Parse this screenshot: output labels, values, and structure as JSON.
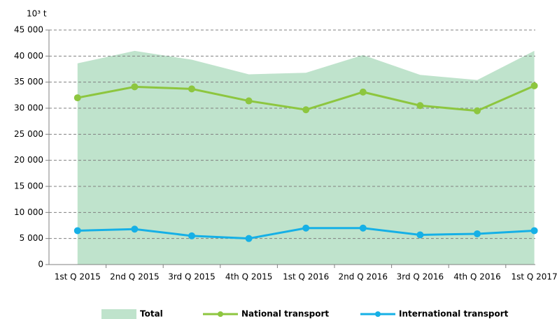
{
  "chart_data": {
    "type": "line",
    "y_unit": "10³ t",
    "categories": [
      "1st Q 2015",
      "2nd Q 2015",
      "3rd Q 2015",
      "4th Q 2015",
      "1st Q 2016",
      "2nd Q 2016",
      "3rd Q 2016",
      "4th Q 2016",
      "1st Q 2017"
    ],
    "series": [
      {
        "name": "Total",
        "kind": "area",
        "color": "#bfe3cc",
        "values": [
          38600,
          41000,
          39300,
          36500,
          36800,
          40200,
          36400,
          35400,
          41000
        ]
      },
      {
        "name": "National transport",
        "kind": "line",
        "color": "#8dc63f",
        "values": [
          32000,
          34100,
          33700,
          31400,
          29700,
          33100,
          30500,
          29500,
          34300
        ]
      },
      {
        "name": "International transport",
        "kind": "line",
        "color": "#16b0e6",
        "values": [
          6500,
          6800,
          5500,
          5000,
          7000,
          7000,
          5700,
          5900,
          6500
        ]
      }
    ],
    "ylim": [
      0,
      45000
    ],
    "yticks": [
      0,
      {
        "value": 5000,
        "label": "5 000"
      },
      {
        "value": 10000,
        "label": "10 000"
      },
      {
        "value": 15000,
        "label": "15 000"
      },
      {
        "value": 20000,
        "label": "20 000"
      },
      {
        "value": 25000,
        "label": "25 000"
      },
      {
        "value": 30000,
        "label": "30 000"
      },
      {
        "value": 35000,
        "label": "35 000"
      },
      {
        "value": 40000,
        "label": "40 000"
      },
      {
        "value": 45000,
        "label": "45 000"
      }
    ],
    "grid": true,
    "legend": "bottom"
  }
}
